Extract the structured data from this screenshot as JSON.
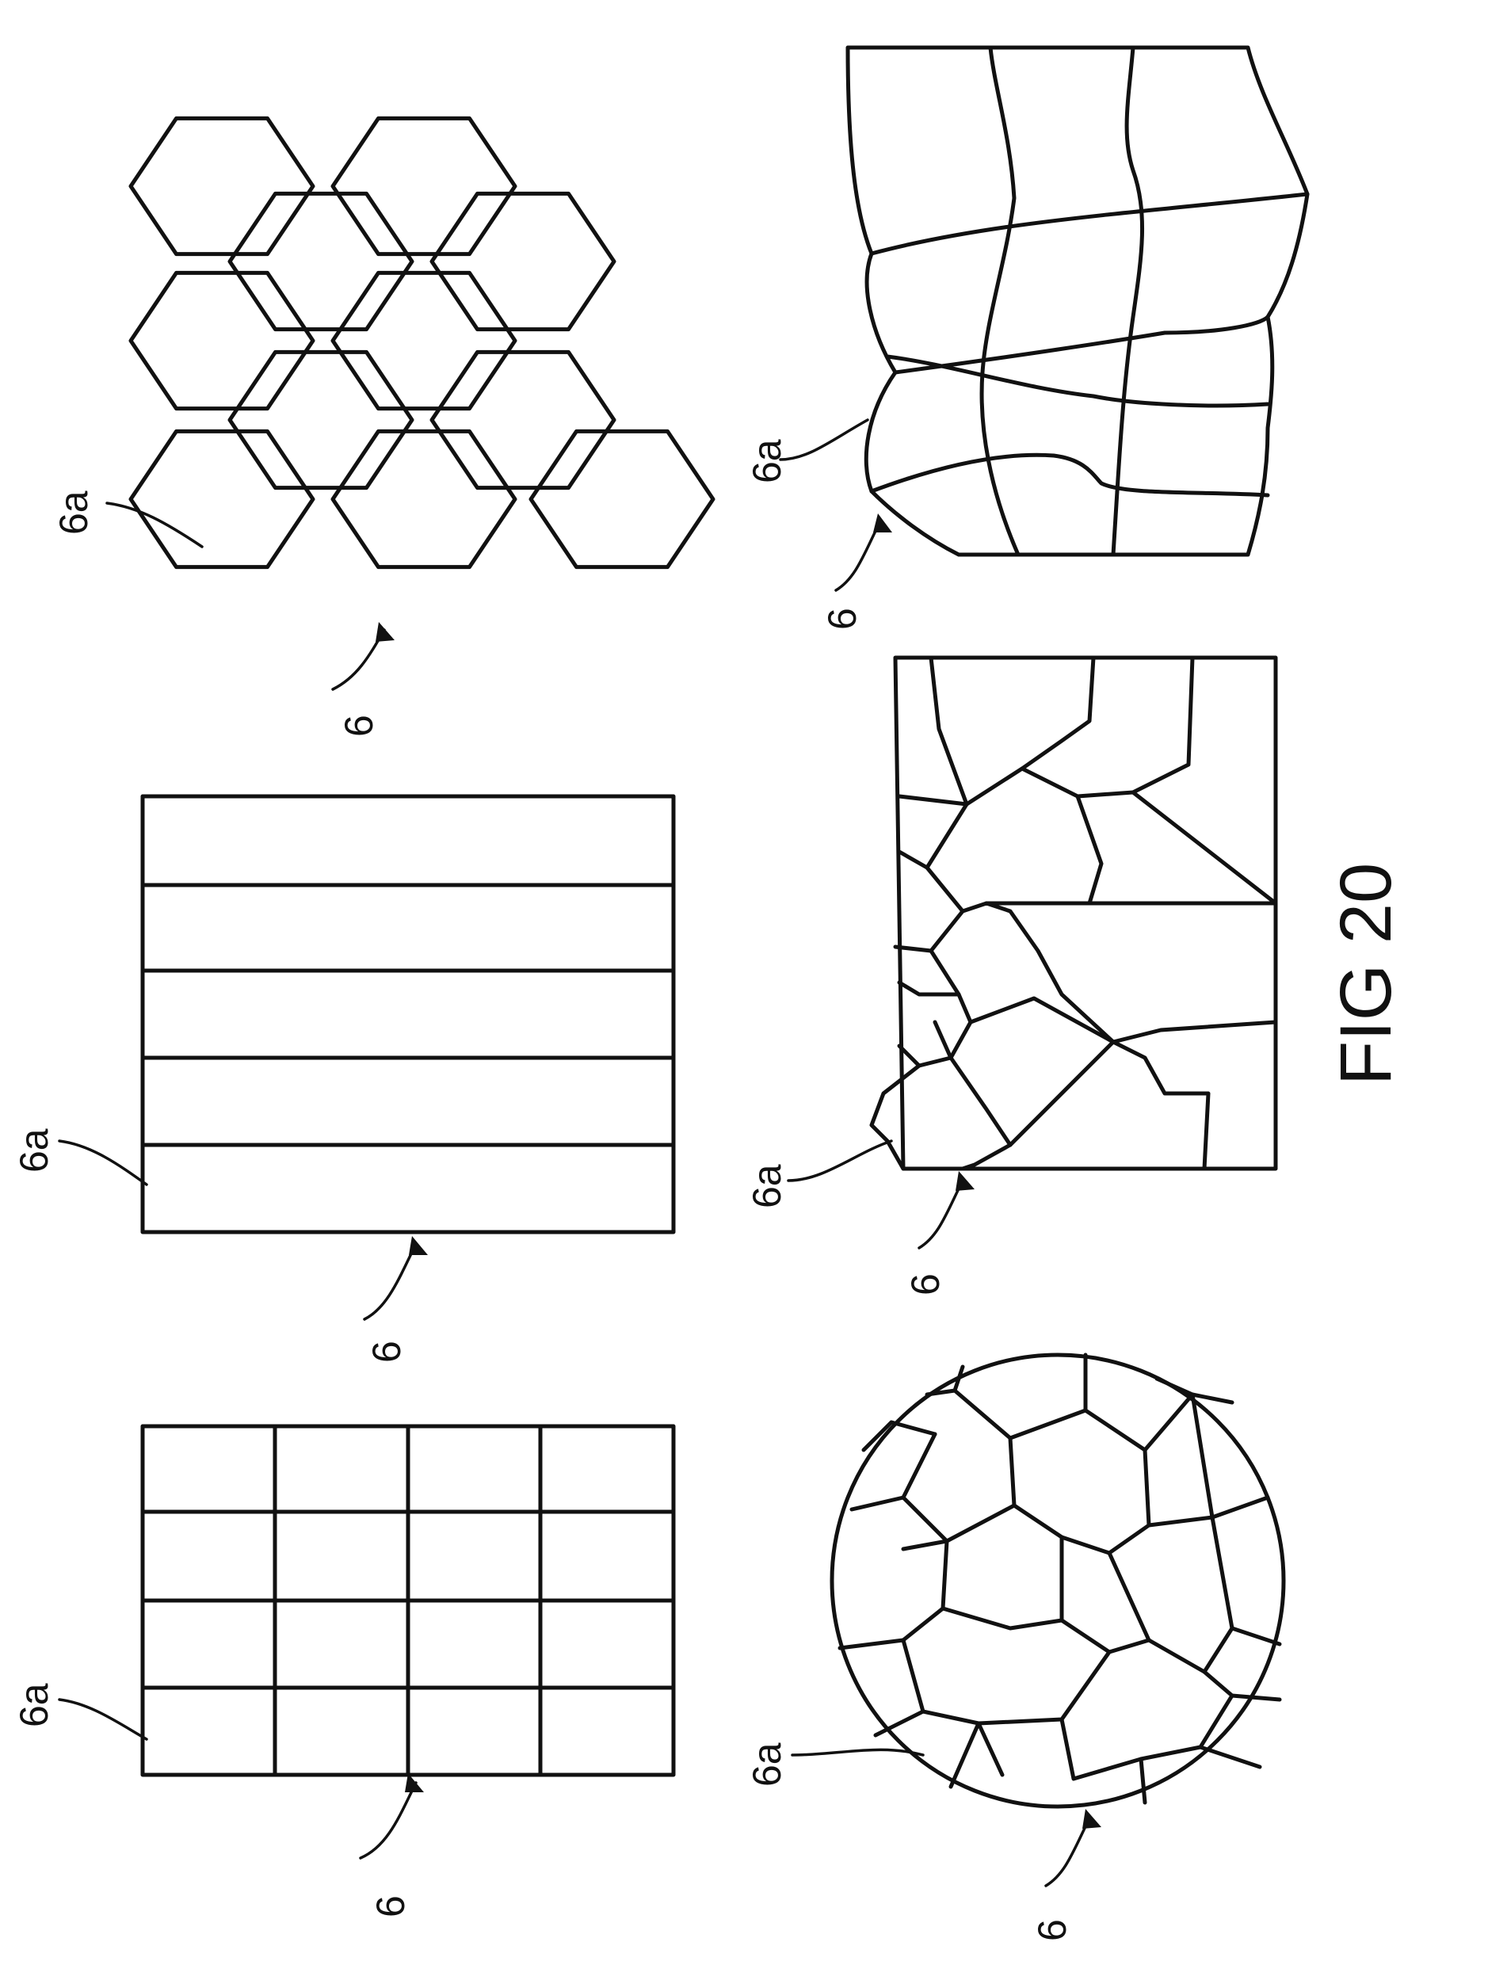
{
  "figure": {
    "title": "FIG 20",
    "panels": [
      {
        "id": "rect-grid",
        "element_ref": "6",
        "cell_ref": "6a"
      },
      {
        "id": "stripes",
        "element_ref": "6",
        "cell_ref": "6a"
      },
      {
        "id": "hexagons",
        "element_ref": "6",
        "cell_ref": "6a"
      },
      {
        "id": "circle-cells",
        "element_ref": "6",
        "cell_ref": "6a"
      },
      {
        "id": "irregular-cells",
        "element_ref": "6",
        "cell_ref": "6a"
      },
      {
        "id": "distorted-grid",
        "element_ref": "6",
        "cell_ref": "6a"
      }
    ]
  }
}
